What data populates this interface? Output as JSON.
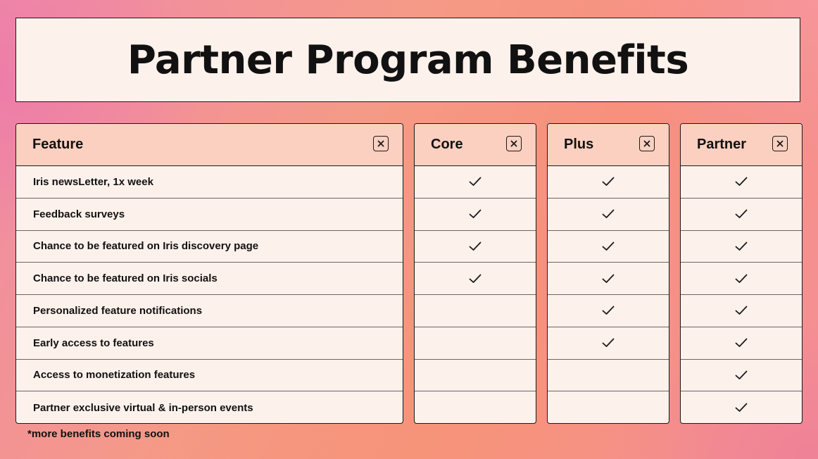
{
  "title": "Partner Program Benefits",
  "feature_column": {
    "header": "Feature",
    "features": [
      "Iris newsLetter, 1x week",
      "Feedback surveys",
      "Chance to be featured on Iris discovery page",
      "Chance to be featured on  Iris socials",
      "Personalized feature notifications",
      "Early access to features",
      "Access to monetization features",
      "Partner exclusive virtual & in-person events"
    ]
  },
  "tiers": [
    {
      "name": "Core",
      "included": [
        true,
        true,
        true,
        true,
        false,
        false,
        false,
        false
      ]
    },
    {
      "name": "Plus",
      "included": [
        true,
        true,
        true,
        true,
        true,
        true,
        false,
        false
      ]
    },
    {
      "name": "Partner",
      "included": [
        true,
        true,
        true,
        true,
        true,
        true,
        true,
        true
      ]
    }
  ],
  "footnote": "*more benefits coming soon",
  "colors": {
    "card_bg": "#fdf1ec",
    "header_bg": "#fbd0c0",
    "border": "#1a1a1a"
  }
}
